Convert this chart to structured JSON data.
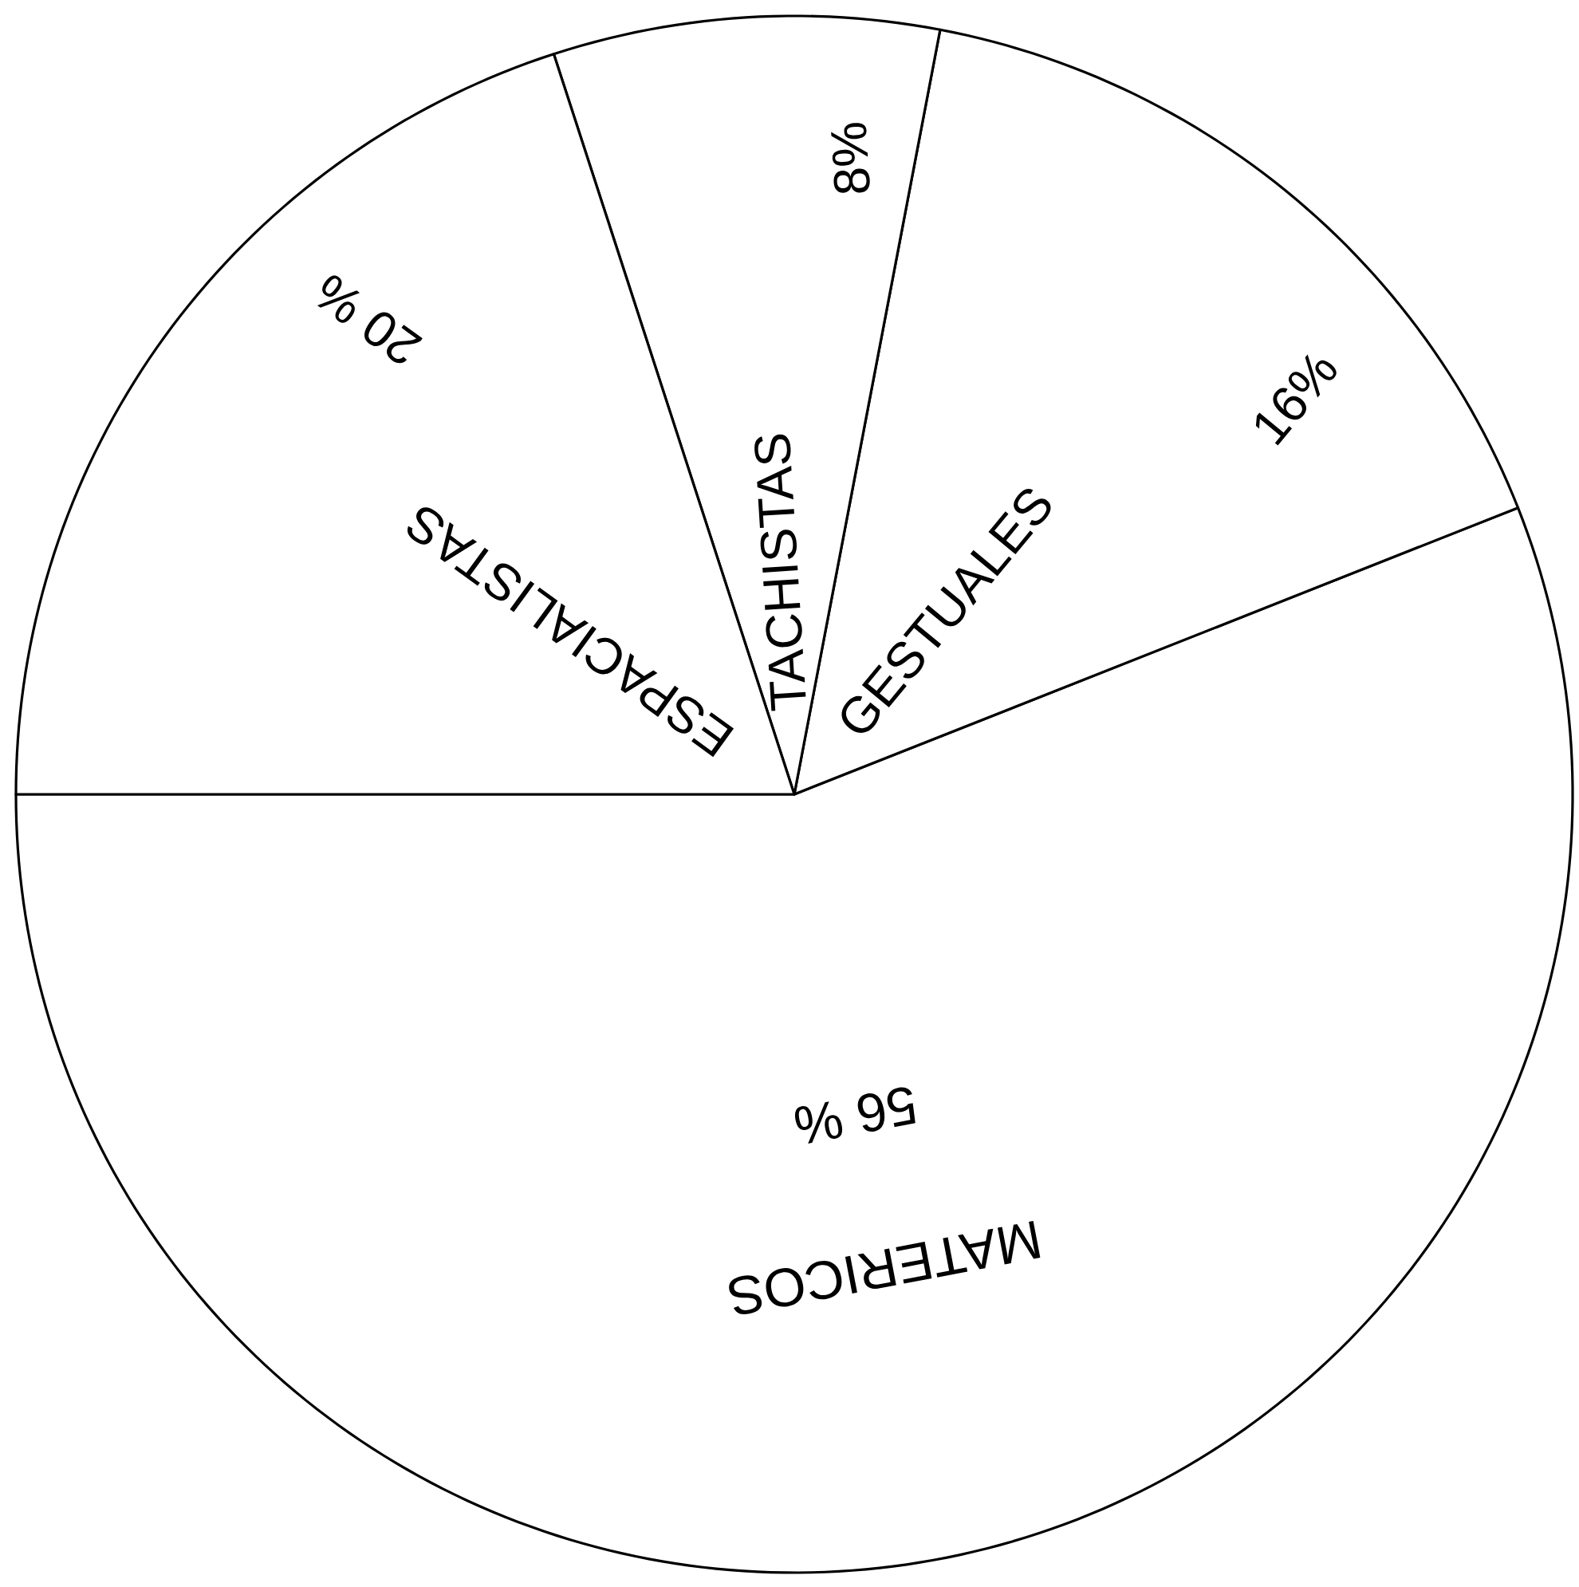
{
  "chart_data": {
    "type": "pie",
    "categories": [
      "MATERICOS",
      "GESTUALES",
      "TACHISTAS",
      "ESPACIALISTAS"
    ],
    "values": [
      56,
      16,
      8,
      20
    ],
    "value_labels": [
      "56 %",
      "16%",
      "8%",
      "20 %"
    ],
    "colors": [
      "#ffffff",
      "#ffffff",
      "#ffffff",
      "#ffffff"
    ]
  }
}
